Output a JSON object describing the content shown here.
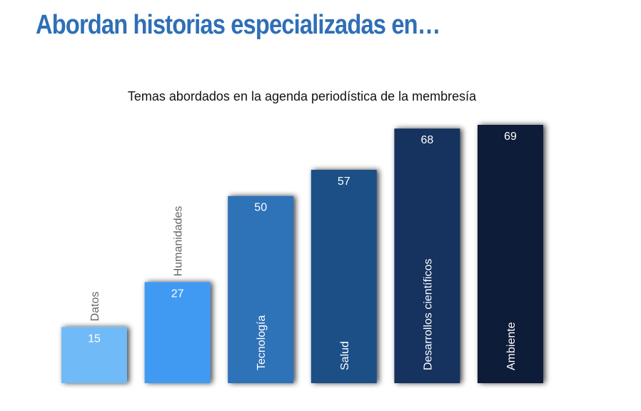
{
  "slide": {
    "title": "Abordan historias especializadas en…"
  },
  "chart_data": {
    "type": "bar",
    "title": "Temas abordados en la agenda periodística de la membresía",
    "xlabel": "",
    "ylabel": "",
    "ylim": [
      0,
      70
    ],
    "grid": false,
    "legend": "none",
    "categories": [
      "Datos",
      "Humanidades",
      "Tecnología",
      "Salud",
      "Desarrollos científicos",
      "Ambiente"
    ],
    "values": [
      15,
      27,
      50,
      57,
      68,
      69
    ],
    "colors": [
      "#6fbbf7",
      "#419af2",
      "#2f72b8",
      "#1f4f86",
      "#17335f",
      "#0b1a38"
    ],
    "category_label_placement": [
      "above",
      "above",
      "inside",
      "inside",
      "inside",
      "inside"
    ],
    "category_label_colors": [
      "#666666",
      "#666666",
      "#ffffff",
      "#ffffff",
      "#ffffff",
      "#ffffff"
    ]
  }
}
